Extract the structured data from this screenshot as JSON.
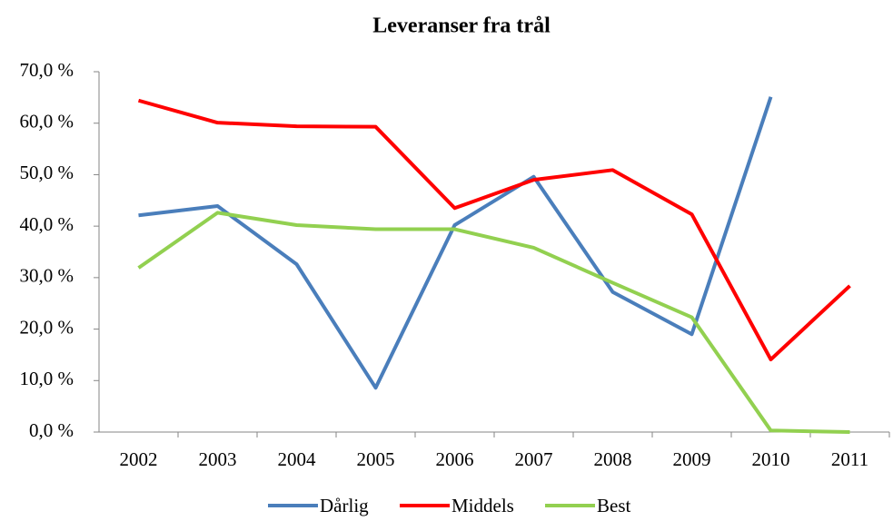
{
  "chart_data": {
    "type": "line",
    "title": "Leveranser fra trål",
    "categories": [
      "2002",
      "2003",
      "2004",
      "2005",
      "2006",
      "2007",
      "2008",
      "2009",
      "2010",
      "2011"
    ],
    "series": [
      {
        "name": "Dårlig",
        "color": "#4a7ebb",
        "values": [
          42.1,
          43.9,
          32.6,
          8.6,
          40.2,
          49.6,
          27.2,
          19.0,
          65.1,
          null
        ]
      },
      {
        "name": "Middels",
        "color": "#ff0000",
        "values": [
          64.4,
          60.1,
          59.4,
          59.3,
          43.5,
          49.0,
          50.9,
          42.3,
          14.1,
          28.4
        ]
      },
      {
        "name": "Best",
        "color": "#92d050",
        "values": [
          31.9,
          42.6,
          40.2,
          39.4,
          39.4,
          35.8,
          29.0,
          22.3,
          0.3,
          0.0
        ]
      }
    ],
    "ylim": [
      0,
      70
    ],
    "yticks": [
      {
        "value": 0,
        "label": "0,0 %"
      },
      {
        "value": 10,
        "label": "10,0 %"
      },
      {
        "value": 20,
        "label": "20,0 %"
      },
      {
        "value": 30,
        "label": "30,0 %"
      },
      {
        "value": 40,
        "label": "40,0 %"
      },
      {
        "value": 50,
        "label": "50,0 %"
      },
      {
        "value": 60,
        "label": "60,0 %"
      },
      {
        "value": 70,
        "label": "70,0 %"
      }
    ],
    "legend": "bottom",
    "grid": false
  }
}
